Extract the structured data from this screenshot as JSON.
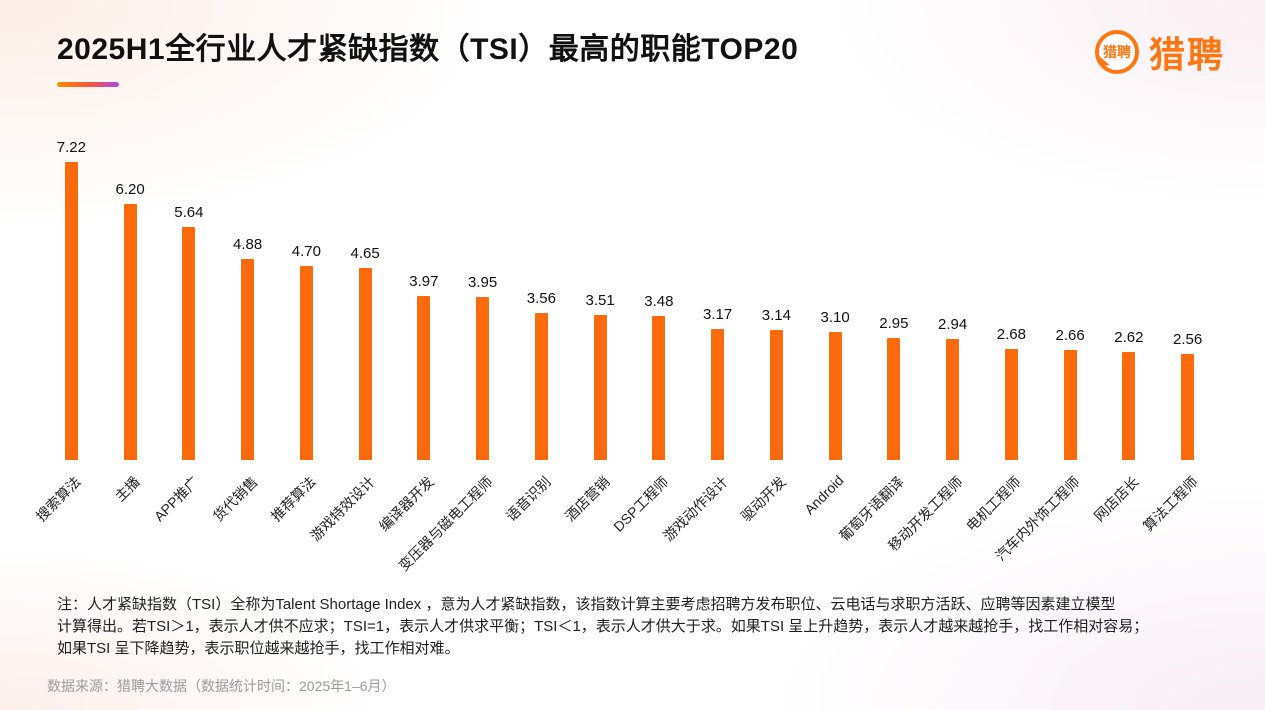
{
  "header": {
    "title": "2025H1全行业人才紧缺指数（TSI）最高的职能TOP20",
    "logo": {
      "icon_text": "猎聘",
      "brand_text": "猎聘",
      "brand_color": "#FF7612"
    }
  },
  "chart_data": {
    "type": "bar",
    "title": "2025H1全行业人才紧缺指数（TSI）最高的职能TOP20",
    "categories": [
      "搜索算法",
      "主播",
      "APP推广",
      "货代销售",
      "推荐算法",
      "游戏特效设计",
      "编译器开发",
      "变压器与磁电工程师",
      "语音识别",
      "酒店营销",
      "DSP工程师",
      "游戏动作设计",
      "驱动开发",
      "Android",
      "葡萄牙语翻译",
      "移动开发工程师",
      "电机工程师",
      "汽车内外饰工程师",
      "网店店长",
      "算法工程师"
    ],
    "values": [
      7.22,
      6.2,
      5.64,
      4.88,
      4.7,
      4.65,
      3.97,
      3.95,
      3.56,
      3.51,
      3.48,
      3.17,
      3.14,
      3.1,
      2.95,
      2.94,
      2.68,
      2.66,
      2.62,
      2.56
    ],
    "bar_color": "#FB6B0B",
    "xlabel": "",
    "ylabel": "",
    "ylim": [
      0,
      7.5
    ],
    "grid": false,
    "legend": "none",
    "value_labels": "above bars, 2 decimal places",
    "category_label_rotation": -45
  },
  "footer": {
    "note_line1": "注：人才紧缺指数（TSI）全称为Talent Shortage Index ，意为人才紧缺指数，该指数计算主要考虑招聘方发布职位、云电话与求职方活跃、应聘等因素建立模型",
    "note_line2": "计算得出。若TSI＞1，表示人才供不应求；TSI=1，表示人才供求平衡；TSI＜1，表示人才供大于求。如果TSI 呈上升趋势，表示人才越来越抢手，找工作相对容易；",
    "note_line3": "如果TSI 呈下降趋势，表示职位越来越抢手，找工作相对难。",
    "source": "数据来源：猎聘大数据（数据统计时间：2025年1–6月）"
  }
}
